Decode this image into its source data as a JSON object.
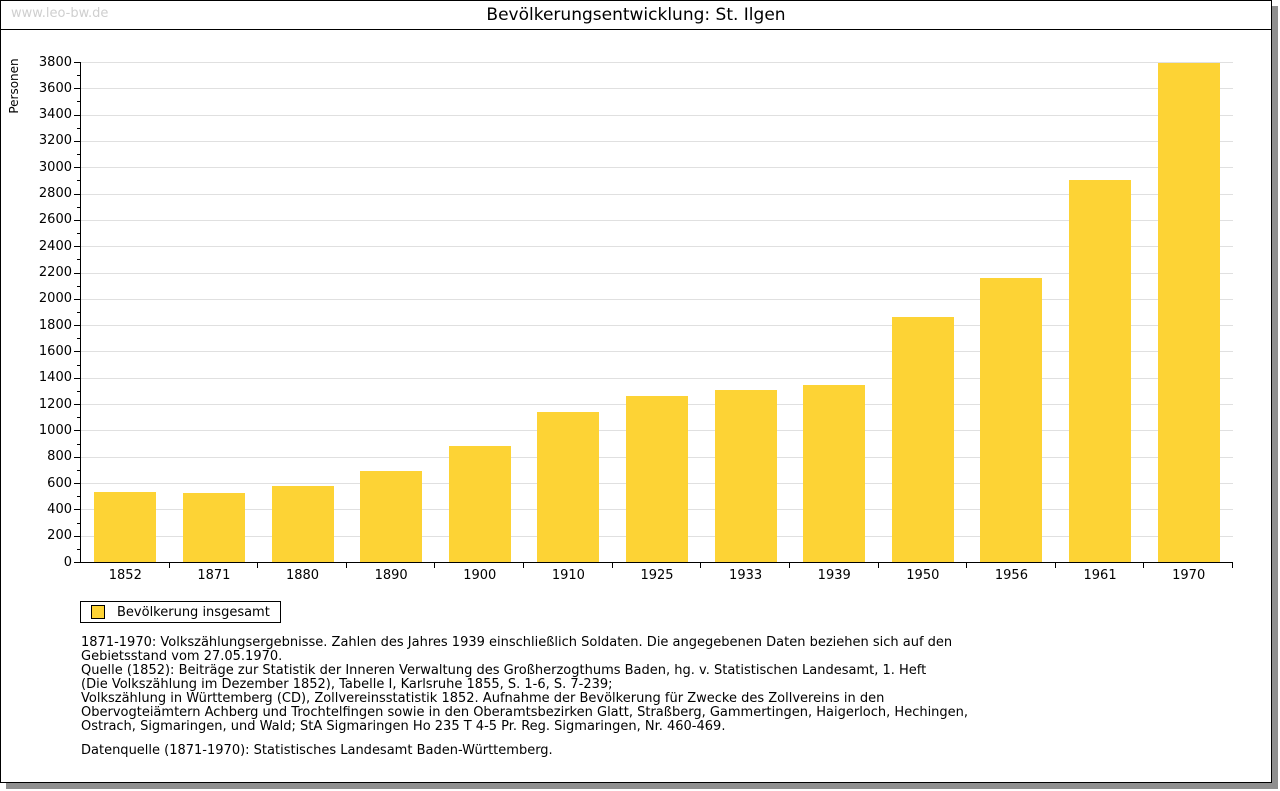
{
  "page": {
    "watermark": "www.leo-bw.de",
    "title": "Bevölkerungsentwicklung: St. Ilgen"
  },
  "chart_data": {
    "type": "bar",
    "title": "Bevölkerungsentwicklung: St. Ilgen",
    "xlabel": "",
    "ylabel": "Personen",
    "categories": [
      "1852",
      "1871",
      "1880",
      "1890",
      "1900",
      "1910",
      "1925",
      "1933",
      "1939",
      "1950",
      "1956",
      "1961",
      "1970"
    ],
    "values": [
      530,
      525,
      575,
      690,
      880,
      1140,
      1265,
      1305,
      1345,
      1865,
      2155,
      2900,
      3795
    ],
    "ylim": [
      0,
      3800
    ],
    "ytick_step": 200,
    "minor_tick_step": 100,
    "grid": true,
    "grid_color": "#e0e0e0",
    "bar_color": "#fdd335",
    "legend_label": "Bevölkerung insgesamt",
    "legend_position": "bottom-left"
  },
  "footer": {
    "lines": [
      "1871-1970: Volkszählungsergebnisse. Zahlen des Jahres 1939 einschließlich Soldaten. Die angegebenen Daten beziehen sich auf den",
      "Gebietsstand vom 27.05.1970.",
      "Quelle (1852): Beiträge zur Statistik der Inneren Verwaltung des Großherzogthums Baden, hg. v. Statistischen Landesamt, 1. Heft",
      "(Die Volkszählung im Dezember 1852), Tabelle I, Karlsruhe 1855, S. 1-6, S. 7-239;",
      "Volkszählung in Württemberg (CD), Zollvereinsstatistik 1852. Aufnahme der Bevölkerung für Zwecke des Zollvereins in den",
      "Obervogteiämtern Achberg und Trochtelfingen sowie in den Oberamtsbezirken Glatt, Straßberg, Gammertingen, Haigerloch, Hechingen,",
      "Ostrach, Sigmaringen, und Wald; StA Sigmaringen Ho 235 T 4-5 Pr. Reg. Sigmaringen, Nr. 460-469."
    ],
    "datasource": "Datenquelle (1871-1970): Statistisches Landesamt Baden-Württemberg."
  }
}
